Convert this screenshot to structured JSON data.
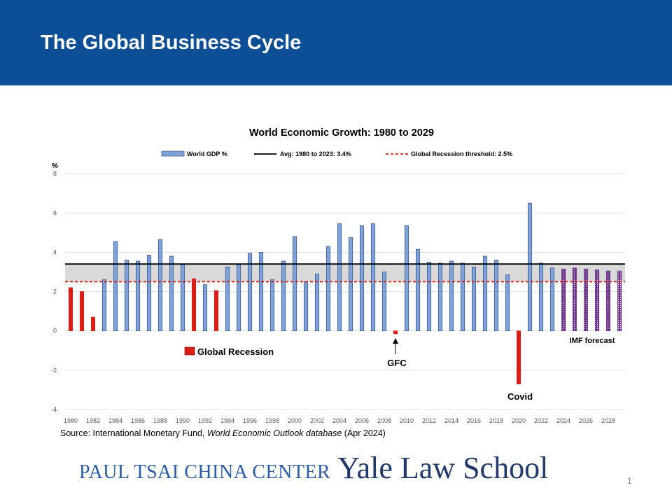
{
  "slide": {
    "title": "The Global Business Cycle",
    "source_prefix": "Source: International Monetary Fund, ",
    "source_italic": "World Economic Outlook database",
    "source_suffix": " (Apr 2024)",
    "logo_center": "PAUL TSAI CHINA CENTER",
    "logo_school": "Yale Law School",
    "page_number": "1"
  },
  "colors": {
    "header_band": "#0d4f96",
    "bar_fill": "#7fa3d6",
    "bar_stroke": "#2f4f86",
    "recession_bar": "#d91e18",
    "forecast_bar": "#6a2c8a",
    "avg_line": "#000000",
    "threshold_line": "#d91e18",
    "band": "#d9d9d9"
  },
  "chart_data": {
    "type": "bar",
    "title": "World Economic Growth: 1980 to 2029",
    "ylabel": "%",
    "ylim": [
      -4,
      8
    ],
    "yticks": [
      -4,
      -2,
      0,
      2,
      4,
      6,
      8
    ],
    "x": [
      1980,
      1981,
      1982,
      1983,
      1984,
      1985,
      1986,
      1987,
      1988,
      1989,
      1990,
      1991,
      1992,
      1993,
      1994,
      1995,
      1996,
      1997,
      1998,
      1999,
      2000,
      2001,
      2002,
      2003,
      2004,
      2005,
      2006,
      2007,
      2008,
      2009,
      2010,
      2011,
      2012,
      2013,
      2014,
      2015,
      2016,
      2017,
      2018,
      2019,
      2020,
      2021,
      2022,
      2023,
      2024,
      2025,
      2026,
      2027,
      2028,
      2029
    ],
    "xtick_labels": [
      "1980",
      "1982",
      "1984",
      "1986",
      "1988",
      "1990",
      "1992",
      "1994",
      "1996",
      "1998",
      "2000",
      "2002",
      "2004",
      "2006",
      "2008",
      "2010",
      "2012",
      "2014",
      "2016",
      "2018",
      "2020",
      "2022",
      "2024",
      "2026",
      "2028"
    ],
    "series": [
      {
        "name": "World GDP %",
        "values": [
          2.2,
          2.0,
          0.7,
          2.6,
          4.55,
          3.6,
          3.55,
          3.85,
          4.65,
          3.8,
          3.35,
          2.65,
          2.35,
          2.05,
          3.25,
          3.35,
          3.95,
          4.0,
          2.6,
          3.55,
          4.8,
          2.5,
          2.9,
          4.3,
          5.45,
          4.75,
          5.35,
          5.45,
          3.0,
          -0.15,
          5.35,
          4.15,
          3.5,
          3.45,
          3.55,
          3.45,
          3.25,
          3.8,
          3.6,
          2.85,
          -2.7,
          6.5,
          3.45,
          3.2,
          3.15,
          3.2,
          3.15,
          3.1,
          3.05,
          3.05
        ]
      }
    ],
    "recession_years": [
      1980,
      1981,
      1982,
      1991,
      1993,
      2009,
      2020
    ],
    "forecast_start": 2024,
    "reference_lines": [
      {
        "name": "Avg: 1980 to 2023: 3.4%",
        "value": 3.4,
        "style": "solid"
      },
      {
        "name": "Global Recession threshold: 2.5%",
        "value": 2.5,
        "style": "dashed"
      }
    ],
    "band": [
      2.5,
      3.4
    ],
    "legend": {
      "position": "top",
      "items": [
        "World GDP %",
        "Avg: 1980 to 2023: 3.4%",
        "Global Recession threshold: 2.5%"
      ],
      "recession_label": "Global Recession"
    },
    "annotations": {
      "gfc": "GFC",
      "covid": "Covid",
      "imf_forecast": "IMF forecast"
    }
  }
}
